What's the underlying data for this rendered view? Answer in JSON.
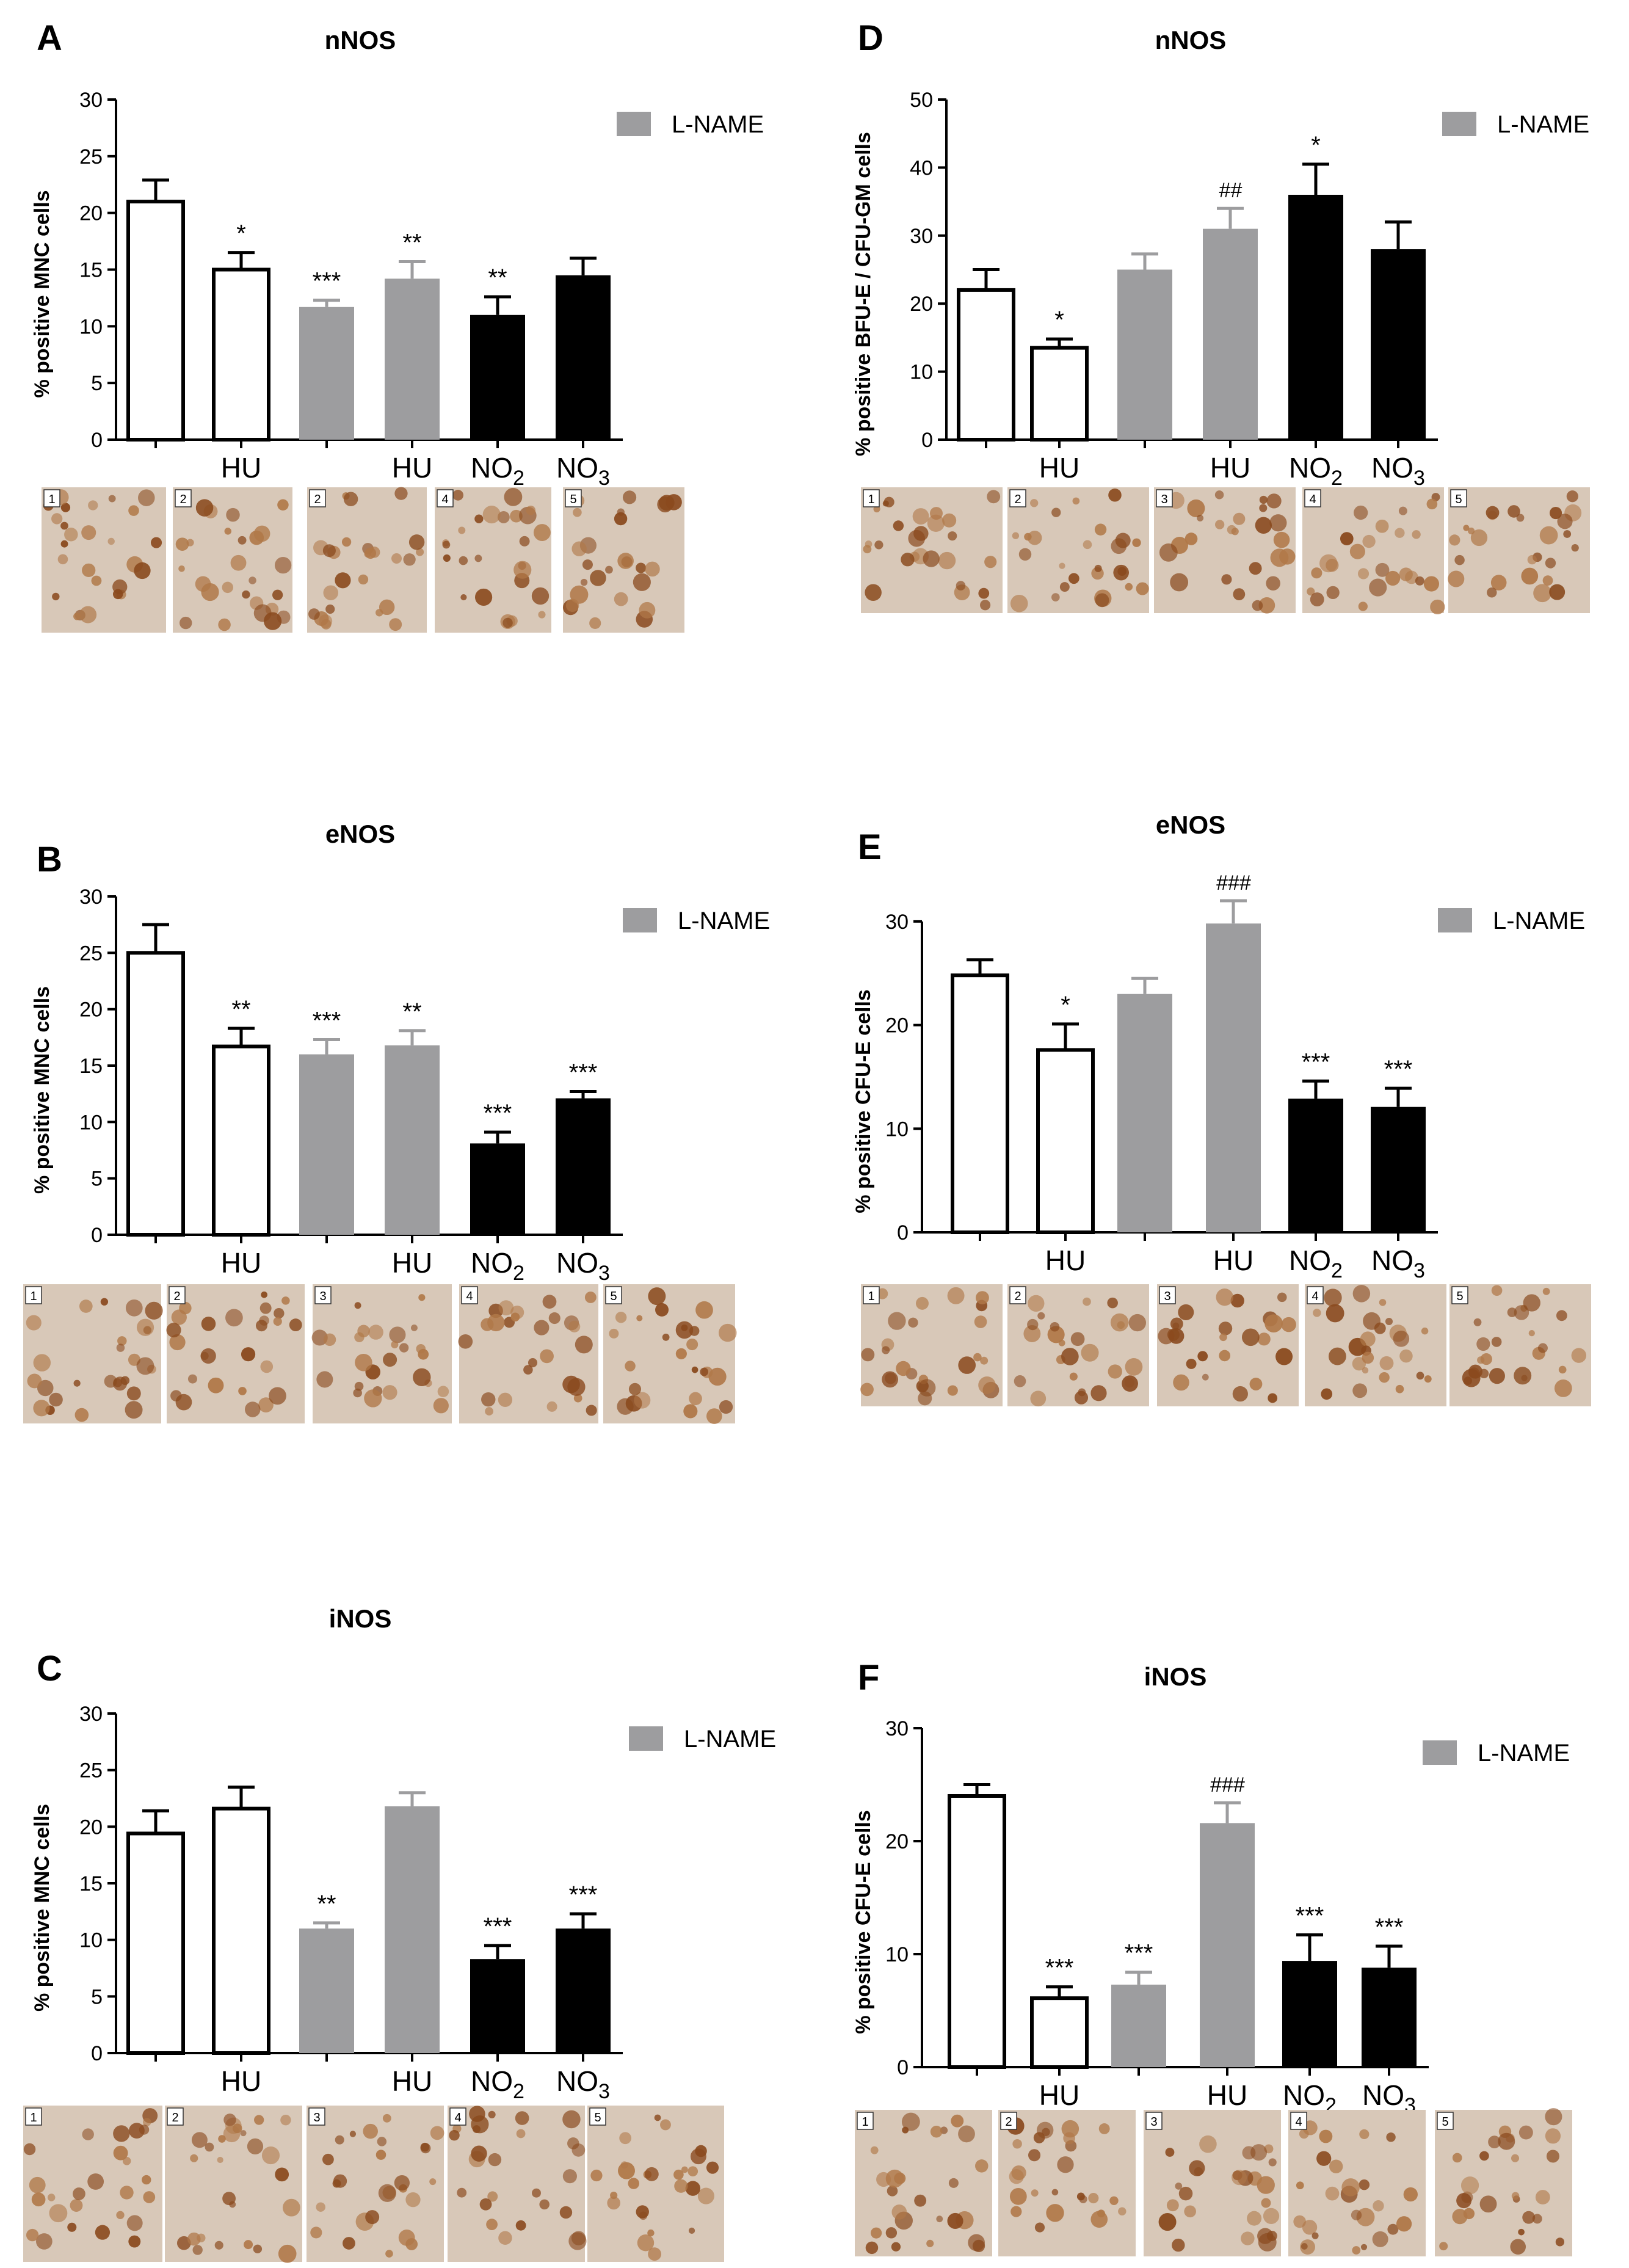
{
  "colors": {
    "white": "#ffffff",
    "gray": "#9d9d9f",
    "black": "#000000",
    "stain_bg": "#d8c8b8",
    "stain_cell": "#8a4a1e"
  },
  "chart_data": [
    {
      "type": "bar",
      "panel": "A",
      "title": "nNOS",
      "ylabel": "% positive MNC cells",
      "ylim": [
        0,
        30
      ],
      "yticks": [
        0,
        5,
        10,
        15,
        20,
        25,
        30
      ],
      "categories": [
        "",
        "HU",
        "",
        "HU",
        "NO2",
        "NO3"
      ],
      "values": [
        21,
        15,
        11.7,
        14.2,
        11,
        14.5
      ],
      "errors": [
        1.9,
        1.5,
        0.6,
        1.5,
        1.6,
        1.5
      ],
      "fills": [
        "white",
        "white",
        "gray",
        "gray",
        "black",
        "black"
      ],
      "annotations": [
        "",
        "*",
        "***",
        "**",
        "**",
        ""
      ],
      "legend": "L-NAME",
      "image_labels": [
        "1",
        "2",
        "2",
        "4",
        "5"
      ]
    },
    {
      "type": "bar",
      "panel": "B",
      "title": "eNOS",
      "ylabel": "% positive MNC cells",
      "ylim": [
        0,
        30
      ],
      "yticks": [
        0,
        5,
        10,
        15,
        20,
        25,
        30
      ],
      "categories": [
        "",
        "HU",
        "",
        "HU",
        "NO2",
        "NO3"
      ],
      "values": [
        25,
        16.7,
        16,
        16.8,
        8.1,
        12.1
      ],
      "errors": [
        2.5,
        1.6,
        1.3,
        1.3,
        1.0,
        0.6
      ],
      "fills": [
        "white",
        "white",
        "gray",
        "gray",
        "black",
        "black"
      ],
      "annotations": [
        "",
        "**",
        "***",
        "**",
        "***",
        "***"
      ],
      "legend": "L-NAME",
      "image_labels": [
        "1",
        "2",
        "3",
        "4",
        "5"
      ]
    },
    {
      "type": "bar",
      "panel": "C",
      "title": "iNOS",
      "ylabel": "% positive MNC cells",
      "ylim": [
        0,
        30
      ],
      "yticks": [
        0,
        5,
        10,
        15,
        20,
        25,
        30
      ],
      "categories": [
        "",
        "HU",
        "",
        "HU",
        "NO2",
        "NO3"
      ],
      "values": [
        19.4,
        21.6,
        11,
        21.8,
        8.3,
        11
      ],
      "errors": [
        2.0,
        1.9,
        0.5,
        1.2,
        1.2,
        1.3
      ],
      "fills": [
        "white",
        "white",
        "gray",
        "gray",
        "black",
        "black"
      ],
      "annotations": [
        "",
        "",
        "**",
        "",
        "***",
        "***"
      ],
      "legend": "L-NAME",
      "image_labels": [
        "1",
        "2",
        "3",
        "4",
        "5"
      ]
    },
    {
      "type": "bar",
      "panel": "D",
      "title": "nNOS",
      "ylabel": "% positive BFU-E / CFU-GM cells",
      "ylim": [
        0,
        50
      ],
      "yticks": [
        0,
        10,
        20,
        30,
        40,
        50
      ],
      "categories": [
        "",
        "HU",
        "",
        "HU",
        "NO2",
        "NO3"
      ],
      "values": [
        22,
        13.5,
        25,
        31,
        36,
        28
      ],
      "errors": [
        3,
        1.3,
        2.3,
        3,
        4.5,
        4
      ],
      "fills": [
        "white",
        "white",
        "gray",
        "gray",
        "black",
        "black"
      ],
      "annotations": [
        "",
        "*",
        "",
        "##",
        "*",
        ""
      ],
      "legend": "L-NAME",
      "image_labels": [
        "1",
        "2",
        "3",
        "4",
        "5"
      ]
    },
    {
      "type": "bar",
      "panel": "E",
      "title": "eNOS",
      "ylabel": "% positive CFU-E cells",
      "ylim": [
        0,
        32
      ],
      "yticks": [
        0,
        10,
        20,
        30
      ],
      "categories": [
        "",
        "HU",
        "",
        "HU",
        "NO2",
        "NO3"
      ],
      "values": [
        24.8,
        17.6,
        23,
        29.8,
        12.9,
        12.1
      ],
      "errors": [
        1.5,
        2.5,
        1.5,
        2.2,
        1.7,
        1.8
      ],
      "fills": [
        "white",
        "white",
        "gray",
        "gray",
        "black",
        "black"
      ],
      "annotations": [
        "",
        "*",
        "",
        "###",
        "***",
        "***"
      ],
      "legend": "L-NAME",
      "image_labels": [
        "1",
        "2",
        "3",
        "4",
        "5"
      ]
    },
    {
      "type": "bar",
      "panel": "F",
      "title": "iNOS",
      "ylabel": "% positive CFU-E cells",
      "ylim": [
        0,
        30
      ],
      "yticks": [
        0,
        10,
        20,
        30
      ],
      "categories": [
        "",
        "HU",
        "",
        "HU",
        "NO2",
        "NO3"
      ],
      "values": [
        24,
        6.1,
        7.3,
        21.6,
        9.4,
        8.8
      ],
      "errors": [
        1.0,
        1.0,
        1.1,
        1.8,
        2.3,
        1.9
      ],
      "fills": [
        "white",
        "white",
        "gray",
        "gray",
        "black",
        "black"
      ],
      "annotations": [
        "",
        "***",
        "***",
        "###",
        "***",
        "***"
      ],
      "legend": "L-NAME",
      "image_labels": [
        "1",
        "2",
        "3",
        "4",
        "5"
      ]
    }
  ]
}
